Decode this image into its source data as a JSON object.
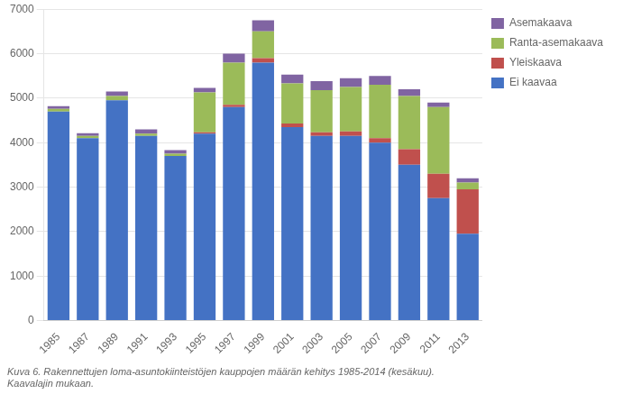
{
  "chart_data": {
    "type": "bar",
    "stacked": true,
    "caption": "Kuva 6. Rakennettujen loma-asuntokiinteistöjen kauppojen määrän kehitys 1985-2014 (kesäkuu).\nKaavalajin mukaan.",
    "categories": [
      "1985",
      "1987",
      "1989",
      "1991",
      "1993",
      "1995",
      "1997",
      "1999",
      "2001",
      "2003",
      "2005",
      "2007",
      "2009",
      "2011",
      "2013"
    ],
    "series": [
      {
        "name": "Ei kaavaa",
        "color": "#4472C4",
        "values": [
          4700,
          4100,
          4950,
          4150,
          3700,
          4200,
          4800,
          5800,
          4350,
          4150,
          4150,
          4000,
          3500,
          2750,
          1950
        ]
      },
      {
        "name": "Yleiskaava",
        "color": "#C0504D",
        "values": [
          0,
          0,
          0,
          0,
          0,
          30,
          50,
          100,
          80,
          80,
          100,
          100,
          350,
          550,
          1000
        ]
      },
      {
        "name": "Ranta-asemakaava",
        "color": "#9BBB59",
        "values": [
          60,
          50,
          100,
          50,
          50,
          900,
          950,
          600,
          900,
          950,
          1000,
          1200,
          1200,
          1500,
          150
        ]
      },
      {
        "name": "Asemakaava",
        "color": "#8064A2",
        "values": [
          60,
          60,
          100,
          100,
          80,
          100,
          200,
          250,
          200,
          200,
          200,
          200,
          150,
          100,
          100
        ]
      }
    ],
    "ylim": [
      0,
      7000
    ],
    "yticks": [
      0,
      1000,
      2000,
      3000,
      4000,
      5000,
      6000,
      7000
    ],
    "grid": true,
    "legend": "upper right"
  }
}
